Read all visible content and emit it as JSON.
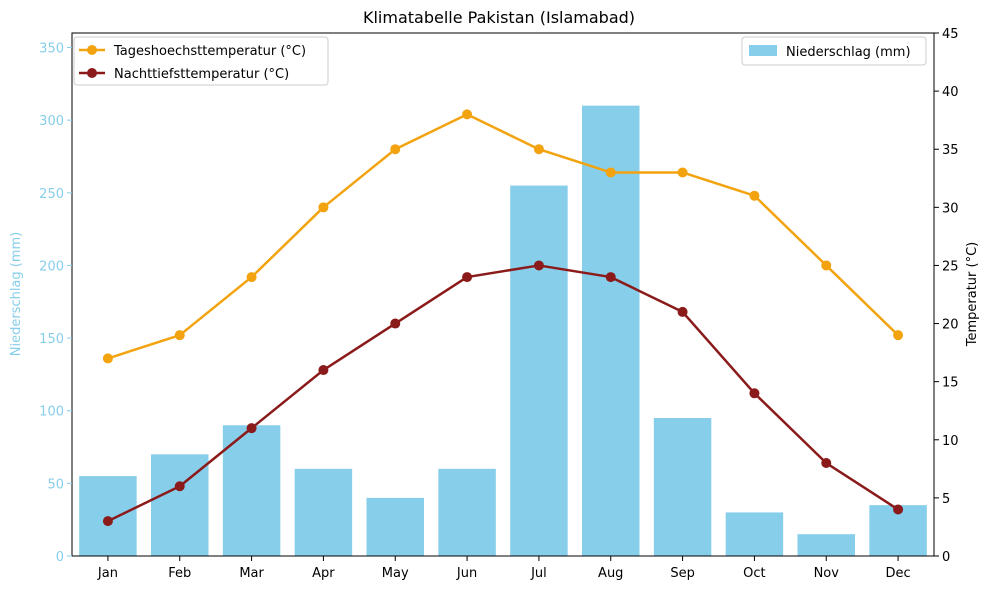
{
  "chart_data": {
    "type": "bar",
    "title": "Klimatabelle Pakistan (Islamabad)",
    "categories": [
      "Jan",
      "Feb",
      "Mar",
      "Apr",
      "May",
      "Jun",
      "Jul",
      "Aug",
      "Sep",
      "Oct",
      "Nov",
      "Dec"
    ],
    "bars": {
      "name": "Niederschlag (mm)",
      "values": [
        55,
        70,
        90,
        60,
        40,
        60,
        255,
        310,
        95,
        30,
        15,
        35
      ],
      "color": "#87CEEB"
    },
    "lines": [
      {
        "name": "Tageshoechsttemperatur (°C)",
        "values": [
          17,
          19,
          24,
          30,
          35,
          38,
          35,
          33,
          33,
          31,
          25,
          19
        ],
        "color": "#F2A30F"
      },
      {
        "name": "Nachttiefsttemperatur (°C)",
        "values": [
          3,
          6,
          11,
          16,
          20,
          24,
          25,
          24,
          21,
          14,
          8,
          4
        ],
        "color": "#8B1A1A"
      }
    ],
    "y_left": {
      "label": "Niederschlag (mm)",
      "lim": [
        0,
        360
      ],
      "ticks": [
        0,
        50,
        100,
        150,
        200,
        250,
        300,
        350
      ],
      "color": "#87CEEB"
    },
    "y_right": {
      "label": "Temperatur (°C)",
      "lim": [
        0,
        45
      ],
      "ticks": [
        0,
        5,
        10,
        15,
        20,
        25,
        30,
        35,
        40,
        45
      ]
    },
    "grid": false,
    "legend_lines_placement": "top-left",
    "legend_bars_placement": "top-right"
  }
}
